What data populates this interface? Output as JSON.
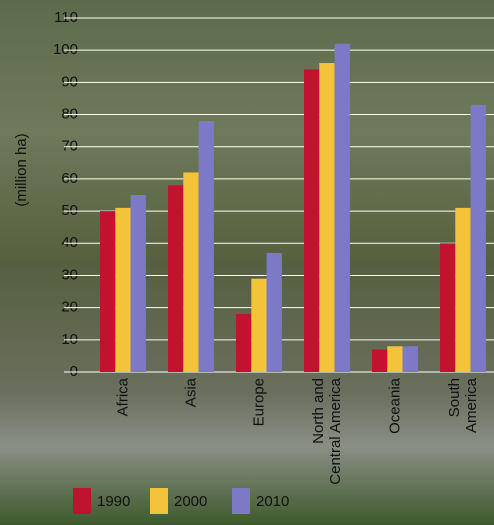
{
  "chart_data": {
    "type": "bar",
    "y_label": "(million ha)",
    "categories": [
      "Africa",
      "Asia",
      "Europe",
      "North and\nCentral America",
      "Oceania",
      "South\nAmerica"
    ],
    "series": [
      {
        "name": "1990",
        "color": "#c3122f",
        "values": [
          50,
          58,
          18,
          94,
          7,
          40
        ]
      },
      {
        "name": "2000",
        "color": "#f3c43a",
        "values": [
          51,
          62,
          29,
          96,
          8,
          51
        ]
      },
      {
        "name": "2010",
        "color": "#7c79c6",
        "values": [
          55,
          78,
          37,
          102,
          8,
          83
        ]
      }
    ],
    "ylim": [
      0,
      110
    ],
    "yticks": [
      0,
      10,
      20,
      30,
      40,
      50,
      60,
      70,
      80,
      90,
      100,
      110
    ],
    "grid": true
  }
}
